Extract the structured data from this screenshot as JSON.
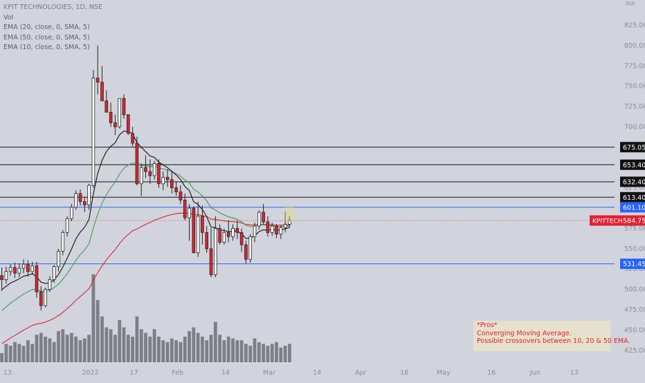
{
  "header": {
    "symbol_line": "KPIT TECHNOLOGIES, 1D, NSE",
    "indicators": [
      "Vol",
      "EMA (20, close, 0, SMA, 5)",
      "EMA (50, close, 0, SMA, 5)",
      "EMA (10, close, 0, SMA, 5)"
    ],
    "currency": "INR"
  },
  "note": {
    "lines": [
      "*Pros*",
      "Converging Moving Average.",
      "Possible crossovers between 10, 20 & 50 EMA."
    ]
  },
  "colors": {
    "background": "#d1d4dc",
    "up": "#ffffff",
    "down": "#e02230",
    "wick": "#222222",
    "ema10": "#111111",
    "ema20": "#3f9c51",
    "ema50": "#e02230",
    "level_black": "#111111",
    "level_blue": "#2962ff",
    "label_red": "#e02230",
    "volume": "#7d7f86"
  },
  "chart_data": {
    "type": "candlestick",
    "title": "KPIT TECHNOLOGIES, 1D, NSE",
    "ylabel": "INR",
    "ylim": [
      418,
      838
    ],
    "y_ticks": [
      425,
      450,
      475,
      500,
      525,
      550,
      575,
      600,
      625,
      650,
      675,
      700,
      725,
      750,
      775,
      800,
      825
    ],
    "y_tick_labels": [
      "425.00",
      "450.00",
      "475.00",
      "500.00",
      "525.00",
      "550.00",
      "575.00",
      "600.00",
      "625.00",
      "650.00",
      "675.00",
      "700.00",
      "725.00",
      "750.00",
      "775.00",
      "800.00",
      "825.00"
    ],
    "x_labels": [
      "13",
      "2022",
      "17",
      "Feb",
      "14",
      "Mar",
      "14",
      "Apr",
      "18",
      "May",
      "16",
      "Jun",
      "13"
    ],
    "x_label_bar_index": [
      1,
      20,
      30,
      40,
      51,
      61,
      72,
      82,
      92,
      101,
      112,
      122,
      131
    ],
    "candles": [
      [
        517,
        527,
        498,
        512
      ],
      [
        512,
        528,
        507,
        522
      ],
      [
        522,
        531,
        517,
        527
      ],
      [
        527,
        533,
        514,
        520
      ],
      [
        520,
        532,
        515,
        526
      ],
      [
        526,
        537,
        520,
        531
      ],
      [
        531,
        536,
        516,
        522
      ],
      [
        522,
        534,
        518,
        529
      ],
      [
        529,
        534,
        490,
        497
      ],
      [
        497,
        504,
        474,
        480
      ],
      [
        480,
        502,
        478,
        500
      ],
      [
        500,
        516,
        497,
        512
      ],
      [
        512,
        530,
        508,
        528
      ],
      [
        528,
        550,
        522,
        547
      ],
      [
        547,
        573,
        542,
        570
      ],
      [
        570,
        590,
        565,
        587
      ],
      [
        587,
        605,
        584,
        601
      ],
      [
        601,
        622,
        598,
        618
      ],
      [
        618,
        623,
        603,
        608
      ],
      [
        608,
        613,
        595,
        604
      ],
      [
        604,
        630,
        598,
        628
      ],
      [
        628,
        770,
        625,
        760
      ],
      [
        760,
        800,
        740,
        755
      ],
      [
        755,
        775,
        732,
        732
      ],
      [
        732,
        745,
        718,
        718
      ],
      [
        718,
        730,
        700,
        705
      ],
      [
        705,
        715,
        690,
        700
      ],
      [
        700,
        735,
        698,
        735
      ],
      [
        735,
        740,
        710,
        715
      ],
      [
        715,
        712,
        690,
        692
      ],
      [
        692,
        700,
        676,
        680
      ],
      [
        680,
        688,
        628,
        630
      ],
      [
        630,
        655,
        615,
        650
      ],
      [
        650,
        665,
        637,
        645
      ],
      [
        645,
        660,
        630,
        640
      ],
      [
        640,
        658,
        635,
        655
      ],
      [
        655,
        660,
        625,
        630
      ],
      [
        630,
        645,
        622,
        638
      ],
      [
        638,
        648,
        626,
        635
      ],
      [
        635,
        645,
        618,
        625
      ],
      [
        625,
        632,
        615,
        620
      ],
      [
        620,
        628,
        605,
        610
      ],
      [
        610,
        618,
        585,
        588
      ],
      [
        588,
        605,
        560,
        600
      ],
      [
        600,
        602,
        545,
        545
      ],
      [
        545,
        608,
        540,
        590
      ],
      [
        590,
        603,
        555,
        570
      ],
      [
        570,
        578,
        545,
        550
      ],
      [
        550,
        575,
        515,
        518
      ],
      [
        518,
        590,
        515,
        575
      ],
      [
        575,
        580,
        555,
        558
      ],
      [
        558,
        575,
        555,
        570
      ],
      [
        570,
        585,
        558,
        565
      ],
      [
        565,
        580,
        560,
        575
      ],
      [
        575,
        585,
        562,
        570
      ],
      [
        570,
        575,
        546,
        555
      ],
      [
        555,
        560,
        532,
        537
      ],
      [
        537,
        568,
        533,
        565
      ],
      [
        565,
        582,
        558,
        578
      ],
      [
        578,
        597,
        574,
        595
      ],
      [
        595,
        605,
        580,
        583
      ],
      [
        583,
        590,
        565,
        570
      ],
      [
        570,
        582,
        566,
        578
      ],
      [
        578,
        580,
        563,
        568
      ],
      [
        568,
        579,
        562,
        576
      ],
      [
        576,
        596,
        570,
        580
      ],
      [
        580,
        590,
        576,
        585
      ]
    ],
    "volume_relative": [
      0.05,
      0.1,
      0.09,
      0.11,
      0.1,
      0.09,
      0.12,
      0.1,
      0.15,
      0.16,
      0.14,
      0.13,
      0.11,
      0.17,
      0.18,
      0.15,
      0.16,
      0.14,
      0.12,
      0.13,
      0.15,
      0.48,
      0.34,
      0.25,
      0.19,
      0.18,
      0.15,
      0.23,
      0.19,
      0.15,
      0.14,
      0.25,
      0.18,
      0.16,
      0.14,
      0.18,
      0.14,
      0.12,
      0.11,
      0.13,
      0.12,
      0.11,
      0.14,
      0.17,
      0.19,
      0.16,
      0.14,
      0.12,
      0.15,
      0.22,
      0.15,
      0.12,
      0.14,
      0.13,
      0.12,
      0.12,
      0.1,
      0.09,
      0.13,
      0.11,
      0.1,
      0.09,
      0.1,
      0.11,
      0.08,
      0.09,
      0.1
    ],
    "series": [],
    "price_levels": [
      {
        "value": 675.05,
        "label": "675.05",
        "color": "#111111"
      },
      {
        "value": 653.4,
        "label": "653.40",
        "color": "#111111"
      },
      {
        "value": 632.4,
        "label": "632.40",
        "color": "#111111"
      },
      {
        "value": 613.4,
        "label": "613.40",
        "color": "#111111"
      },
      {
        "value": 601.1,
        "label": "601.10",
        "color": "#2962ff"
      },
      {
        "value": 531.45,
        "label": "531.45",
        "color": "#2962ff"
      }
    ],
    "last_price": {
      "label": "KPITTECH",
      "value": "584.75",
      "y": 584.75
    },
    "grid": false
  }
}
